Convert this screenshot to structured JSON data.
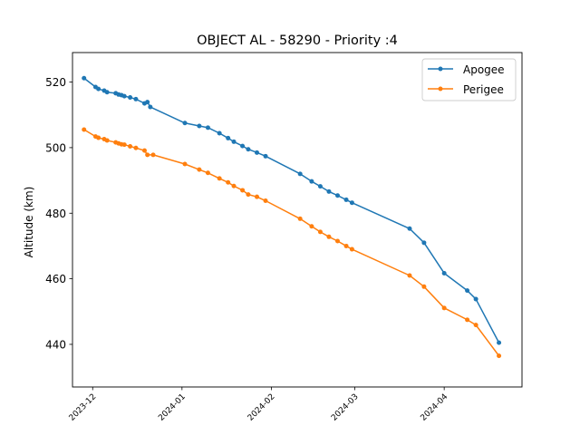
{
  "chart_data": {
    "type": "line",
    "title": "OBJECT AL - 58290 - Priority :4",
    "xlabel": "",
    "ylabel": "Altitude (km)",
    "xlim": [
      "2023-11-24",
      "2024-04-28"
    ],
    "ylim": [
      427,
      529
    ],
    "x_ticks": [
      "2023-12-01",
      "2024-01-01",
      "2024-02-01",
      "2024-03-01",
      "2024-04-01"
    ],
    "x_tick_labels": [
      "2023-12",
      "2024-01",
      "2024-02",
      "2024-03",
      "2024-04"
    ],
    "y_ticks": [
      440,
      460,
      480,
      500,
      520
    ],
    "grid": false,
    "legend": "top-right",
    "series": [
      {
        "name": "Apogee",
        "color": "#1f77b4",
        "x": [
          "2023-11-28",
          "2023-12-02",
          "2023-12-03",
          "2023-12-05",
          "2023-12-06",
          "2023-12-09",
          "2023-12-10",
          "2023-12-11",
          "2023-12-12",
          "2023-12-14",
          "2023-12-16",
          "2023-12-19",
          "2023-12-20",
          "2023-12-21",
          "2024-01-02",
          "2024-01-07",
          "2024-01-10",
          "2024-01-14",
          "2024-01-17",
          "2024-01-19",
          "2024-01-22",
          "2024-01-24",
          "2024-01-27",
          "2024-01-30",
          "2024-02-11",
          "2024-02-15",
          "2024-02-18",
          "2024-02-21",
          "2024-02-24",
          "2024-02-27",
          "2024-02-29",
          "2024-03-20",
          "2024-03-25",
          "2024-04-01",
          "2024-04-09",
          "2024-04-12",
          "2024-04-20"
        ],
        "values": [
          521.2,
          518.5,
          517.9,
          517.4,
          516.9,
          516.6,
          516.2,
          516.0,
          515.7,
          515.3,
          514.8,
          513.5,
          513.9,
          512.4,
          507.5,
          506.6,
          506.1,
          504.4,
          502.9,
          501.8,
          500.5,
          499.5,
          498.5,
          497.4,
          492.0,
          489.7,
          488.2,
          486.6,
          485.4,
          484.1,
          483.2,
          475.3,
          471.0,
          461.7,
          456.4,
          453.8,
          440.5
        ]
      },
      {
        "name": "Perigee",
        "color": "#ff7f0e",
        "x": [
          "2023-11-28",
          "2023-12-02",
          "2023-12-03",
          "2023-12-05",
          "2023-12-06",
          "2023-12-09",
          "2023-12-10",
          "2023-12-11",
          "2023-12-12",
          "2023-12-14",
          "2023-12-16",
          "2023-12-19",
          "2023-12-20",
          "2023-12-22",
          "2024-01-02",
          "2024-01-07",
          "2024-01-10",
          "2024-01-14",
          "2024-01-17",
          "2024-01-19",
          "2024-01-22",
          "2024-01-24",
          "2024-01-27",
          "2024-01-30",
          "2024-02-11",
          "2024-02-15",
          "2024-02-18",
          "2024-02-21",
          "2024-02-24",
          "2024-02-27",
          "2024-02-29",
          "2024-03-20",
          "2024-03-25",
          "2024-04-01",
          "2024-04-09",
          "2024-04-12",
          "2024-04-20"
        ],
        "values": [
          505.5,
          503.4,
          503.0,
          502.6,
          502.2,
          501.6,
          501.3,
          501.0,
          500.9,
          500.4,
          499.9,
          499.1,
          497.8,
          497.8,
          495.0,
          493.3,
          492.3,
          490.6,
          489.4,
          488.3,
          487.0,
          485.7,
          485.0,
          483.8,
          478.3,
          476.0,
          474.3,
          472.8,
          471.5,
          470.0,
          469.0,
          461.0,
          457.6,
          451.1,
          447.5,
          445.9,
          436.5
        ]
      }
    ]
  }
}
